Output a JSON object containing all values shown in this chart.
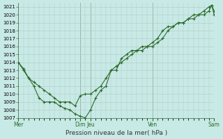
{
  "xlabel": "Pression niveau de la mer( hPa )",
  "ylim": [
    1007,
    1021.5
  ],
  "yticks": [
    1007,
    1008,
    1009,
    1010,
    1011,
    1012,
    1013,
    1014,
    1015,
    1016,
    1017,
    1018,
    1019,
    1020,
    1021
  ],
  "background_color": "#c8eae6",
  "grid_color": "#b0c8c4",
  "line_color": "#2d6a2d",
  "xtick_labels": [
    "Mer",
    "Dim",
    "Jeu",
    "Ven",
    "Sam"
  ],
  "xtick_positions": [
    0,
    12,
    14,
    26,
    38
  ],
  "vline_positions": [
    12,
    14,
    26,
    38
  ],
  "line1_x": [
    0,
    1,
    2,
    3,
    4,
    5,
    6,
    7,
    8,
    9,
    10,
    11,
    12,
    13,
    14,
    15,
    16,
    17,
    18,
    19,
    20,
    21,
    22,
    23,
    24,
    25,
    26,
    27,
    28,
    29,
    30,
    31,
    32,
    33,
    34,
    35,
    36,
    37,
    37.5,
    38
  ],
  "line1_y": [
    1014,
    1013,
    1012,
    1011.5,
    1011,
    1010.5,
    1010,
    1009.5,
    1009,
    1009,
    1009,
    1008.5,
    1009.8,
    1010,
    1010,
    1010.5,
    1011,
    1012,
    1013,
    1013.5,
    1014,
    1014.5,
    1015,
    1015.5,
    1015.5,
    1016,
    1016,
    1016.5,
    1017,
    1018,
    1018.5,
    1019,
    1019,
    1019.5,
    1020,
    1020,
    1020.5,
    1021,
    1021.2,
    1020
  ],
  "line2_x": [
    0,
    1,
    2,
    3,
    4,
    5,
    6,
    7,
    8,
    9,
    10,
    11,
    12,
    13,
    14,
    15,
    16,
    17,
    18,
    19,
    20,
    21,
    22,
    23,
    24,
    25,
    26,
    27,
    28,
    29,
    30,
    31,
    32,
    33,
    34,
    35,
    36,
    37,
    37.5,
    38
  ],
  "line2_y": [
    1014,
    1013.2,
    1012,
    1011,
    1009.5,
    1009,
    1009,
    1009,
    1008.5,
    1008.2,
    1008,
    1007.5,
    1007.2,
    1007,
    1008,
    1009.5,
    1010.5,
    1011,
    1013,
    1013,
    1014.5,
    1015,
    1015.5,
    1015.5,
    1016,
    1016,
    1016.5,
    1017,
    1018,
    1018.5,
    1018.5,
    1019,
    1019,
    1019.5,
    1019.5,
    1020,
    1020,
    1020.5,
    1021.2,
    1020.5
  ]
}
